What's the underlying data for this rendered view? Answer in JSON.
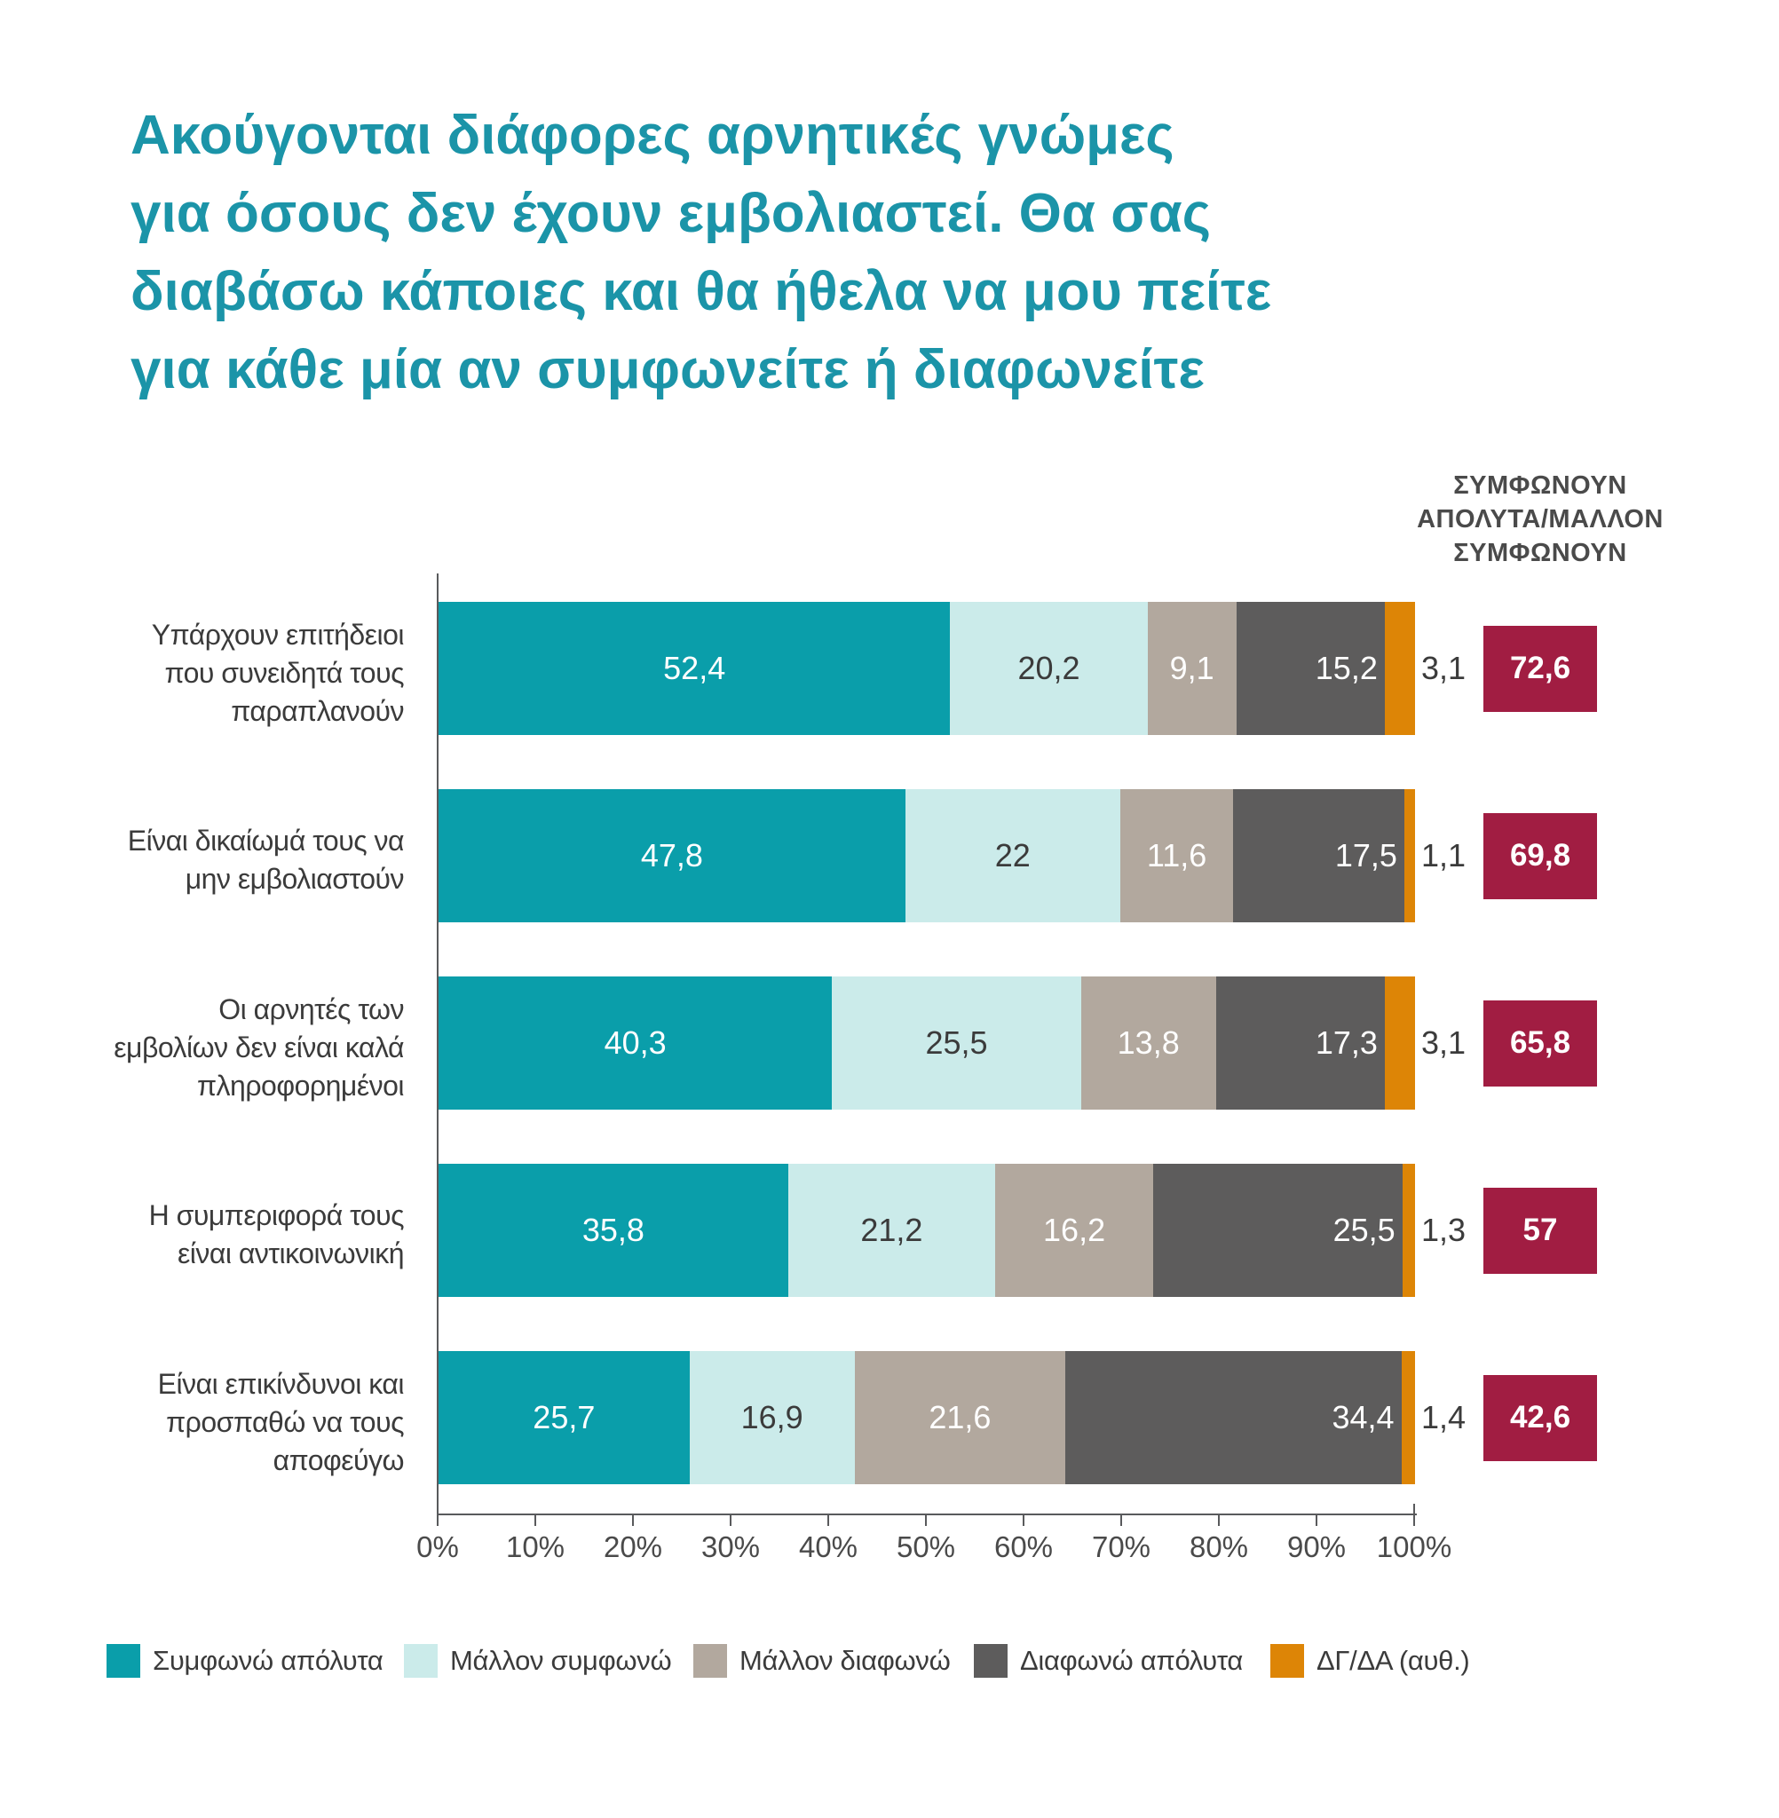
{
  "title": {
    "lines": [
      "Ακούγονται διάφορες αρνητικές γνώμες",
      "για όσους δεν έχουν εμβολιαστεί. Θα σας",
      "διαβάσω κάποιες και θα ήθελα να μου πείτε",
      "για κάθε μία αν συμφωνείτε ή διαφωνείτε"
    ]
  },
  "agree_header": {
    "lines": [
      "ΣΥΜΦΩΝΟΥΝ",
      "ΑΠΟΛΥΤΑ/ΜΑΛΛΟΝ",
      "ΣΥΜΦΩΝΟΥΝ"
    ]
  },
  "colors": {
    "teal": "#0A9EAA",
    "light_cyan": "#CBEBEA",
    "taupe": "#B2A89E",
    "dark_gray": "#5D5C5C",
    "orange": "#DD8506",
    "maroon": "#A11D42",
    "title_teal": "#1B94A8",
    "text_dark": "#3B3B3B",
    "axis_text": "#4A4A4A",
    "axis_line": "#595A5C",
    "label_on_dark": "#FFFFFF"
  },
  "chart_data": {
    "type": "bar",
    "orientation": "horizontal_stacked",
    "xlabel": "",
    "ylabel": "",
    "xlim": [
      0,
      100
    ],
    "x_ticks": [
      "0%",
      "10%",
      "20%",
      "30%",
      "40%",
      "50%",
      "60%",
      "70%",
      "80%",
      "90%",
      "100%"
    ],
    "legend_position": "bottom",
    "grid": false,
    "categories": [
      "Υπάρχουν επιτήδειοι που συνειδητά τους παραπλανούν",
      "Είναι δικαίωμά τους να μην εμβολιαστούν",
      "Οι αρνητές των εμβολίων δεν είναι καλά πληροφορημένοι",
      "Η συμπεριφορά τους είναι αντικοινωνική",
      "Είναι επικίνδυνοι και προσπαθώ να τους αποφεύγω"
    ],
    "category_label_lines": [
      [
        "Υπάρχουν επιτήδειοι",
        "που συνειδητά τους",
        "παραπλανούν"
      ],
      [
        "Είναι δικαίωμά τους να",
        "μην εμβολιαστούν"
      ],
      [
        "Οι αρνητές των",
        "εμβολίων δεν είναι καλά",
        "πληροφορημένοι"
      ],
      [
        "Η συμπεριφορά τους",
        "είναι αντικοινωνική"
      ],
      [
        "Είναι επικίνδυνοι και",
        "προσπαθώ να τους",
        "αποφεύγω"
      ]
    ],
    "series": [
      {
        "name": "Συμφωνώ απόλυτα",
        "color_key": "teal",
        "label_color_key": "label_on_dark",
        "label_align": "center",
        "values": [
          52.4,
          47.8,
          40.3,
          35.8,
          25.7
        ],
        "labels": [
          "52,4",
          "47,8",
          "40,3",
          "35,8",
          "25,7"
        ]
      },
      {
        "name": "Μάλλον συμφωνώ",
        "color_key": "light_cyan",
        "label_color_key": "text_dark",
        "label_align": "center",
        "values": [
          20.2,
          22,
          25.5,
          21.2,
          16.9
        ],
        "labels": [
          "20,2",
          "22",
          "25,5",
          "21,2",
          "16,9"
        ]
      },
      {
        "name": "Μάλλον διαφωνώ",
        "color_key": "taupe",
        "label_color_key": "label_on_dark",
        "label_align": "center",
        "values": [
          9.1,
          11.6,
          13.8,
          16.2,
          21.6
        ],
        "labels": [
          "9,1",
          "11,6",
          "13,8",
          "16,2",
          "21,6"
        ]
      },
      {
        "name": "Διαφωνώ απόλυτα",
        "color_key": "dark_gray",
        "label_color_key": "label_on_dark",
        "label_align": "end",
        "values": [
          15.2,
          17.5,
          17.3,
          25.5,
          34.4
        ],
        "labels": [
          "15,2",
          "17,5",
          "17,3",
          "25,5",
          "34,4"
        ]
      },
      {
        "name": "ΔΓ/ΔΑ (αυθ.)",
        "color_key": "orange",
        "label_color_key": "text_dark",
        "label_align": "outside",
        "values": [
          3.1,
          1.1,
          3.1,
          1.3,
          1.4
        ],
        "labels": [
          "3,1",
          "1,1",
          "3,1",
          "1,3",
          "1,4"
        ]
      }
    ],
    "totals_column": {
      "header": "ΣΥΜΦΩΝΟΥΝ ΑΠΟΛΥΤΑ/ΜΑΛΛΟΝ ΣΥΜΦΩΝΟΥΝ",
      "color_key": "maroon",
      "values": [
        72.6,
        69.8,
        65.8,
        57,
        42.6
      ],
      "labels": [
        "72,6",
        "69,8",
        "65,8",
        "57",
        "42,6"
      ]
    }
  }
}
